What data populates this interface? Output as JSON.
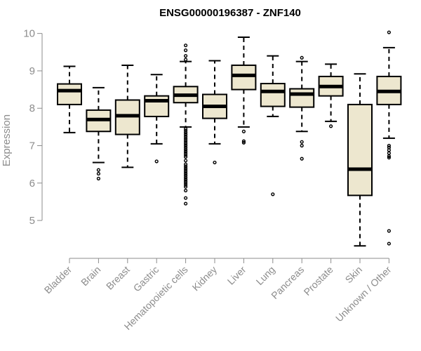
{
  "chart_data": {
    "type": "boxplot",
    "title": "ENSG00000196387 - ZNF140",
    "ylabel": "Expression",
    "xlabel": "",
    "ylim": [
      4.1,
      10.2
    ],
    "yticks": [
      5,
      6,
      7,
      8,
      9,
      10
    ],
    "box_fill": "#ede7cf",
    "axis_color": "#8c8c8c",
    "categories": [
      "Bladder",
      "Brain",
      "Breast",
      "Gastric",
      "Hematopoietic cells",
      "Kidney",
      "Liver",
      "Lung",
      "Pancreas",
      "Prostate",
      "Skin",
      "Unknown / Other"
    ],
    "boxes": [
      {
        "name": "Bladder",
        "min": 7.35,
        "q1": 8.1,
        "median": 8.47,
        "q3": 8.65,
        "max": 9.12,
        "outliers": []
      },
      {
        "name": "Brain",
        "min": 6.55,
        "q1": 7.38,
        "median": 7.7,
        "q3": 7.95,
        "max": 8.55,
        "outliers": [
          6.35,
          6.25,
          6.12
        ]
      },
      {
        "name": "Breast",
        "min": 6.42,
        "q1": 7.3,
        "median": 7.8,
        "q3": 8.22,
        "max": 9.15,
        "outliers": []
      },
      {
        "name": "Gastric",
        "min": 7.05,
        "q1": 7.78,
        "median": 8.2,
        "q3": 8.33,
        "max": 8.9,
        "outliers": [
          6.58
        ]
      },
      {
        "name": "Hematopoietic cells",
        "min": 7.5,
        "q1": 8.15,
        "median": 8.35,
        "q3": 8.58,
        "max": 9.25,
        "outliers": [
          9.68,
          9.55,
          9.4,
          9.3,
          7.45,
          7.4,
          7.35,
          7.3,
          7.25,
          7.2,
          7.15,
          7.1,
          7.05,
          7.0,
          6.95,
          6.9,
          6.85,
          6.8,
          6.75,
          6.7,
          6.6,
          6.5,
          6.45,
          6.4,
          6.35,
          6.3,
          6.25,
          6.2,
          6.15,
          6.1,
          6.05,
          6.0,
          5.95,
          5.9,
          5.8,
          5.6,
          5.45
        ]
      },
      {
        "name": "Kidney",
        "min": 7.05,
        "q1": 7.73,
        "median": 8.05,
        "q3": 8.37,
        "max": 9.27,
        "outliers": [
          6.55
        ]
      },
      {
        "name": "Liver",
        "min": 7.5,
        "q1": 8.5,
        "median": 8.88,
        "q3": 9.15,
        "max": 9.9,
        "outliers": [
          7.38,
          7.12,
          7.08
        ]
      },
      {
        "name": "Lung",
        "min": 7.78,
        "q1": 8.05,
        "median": 8.45,
        "q3": 8.66,
        "max": 9.4,
        "outliers": [
          5.7
        ]
      },
      {
        "name": "Pancreas",
        "min": 7.38,
        "q1": 8.03,
        "median": 8.38,
        "q3": 8.52,
        "max": 9.25,
        "outliers": [
          9.35,
          7.1,
          7.0,
          6.65
        ]
      },
      {
        "name": "Prostate",
        "min": 7.65,
        "q1": 8.33,
        "median": 8.58,
        "q3": 8.85,
        "max": 9.18,
        "outliers": [
          7.52
        ]
      },
      {
        "name": "Skin",
        "min": 4.32,
        "q1": 5.67,
        "median": 6.37,
        "q3": 8.1,
        "max": 8.92,
        "outliers": []
      },
      {
        "name": "Unknown / Other",
        "min": 7.2,
        "q1": 8.1,
        "median": 8.45,
        "q3": 8.85,
        "max": 9.62,
        "outliers": [
          10.03,
          7.0,
          6.95,
          6.88,
          6.8,
          6.72,
          6.68,
          4.72,
          4.38
        ]
      }
    ]
  }
}
